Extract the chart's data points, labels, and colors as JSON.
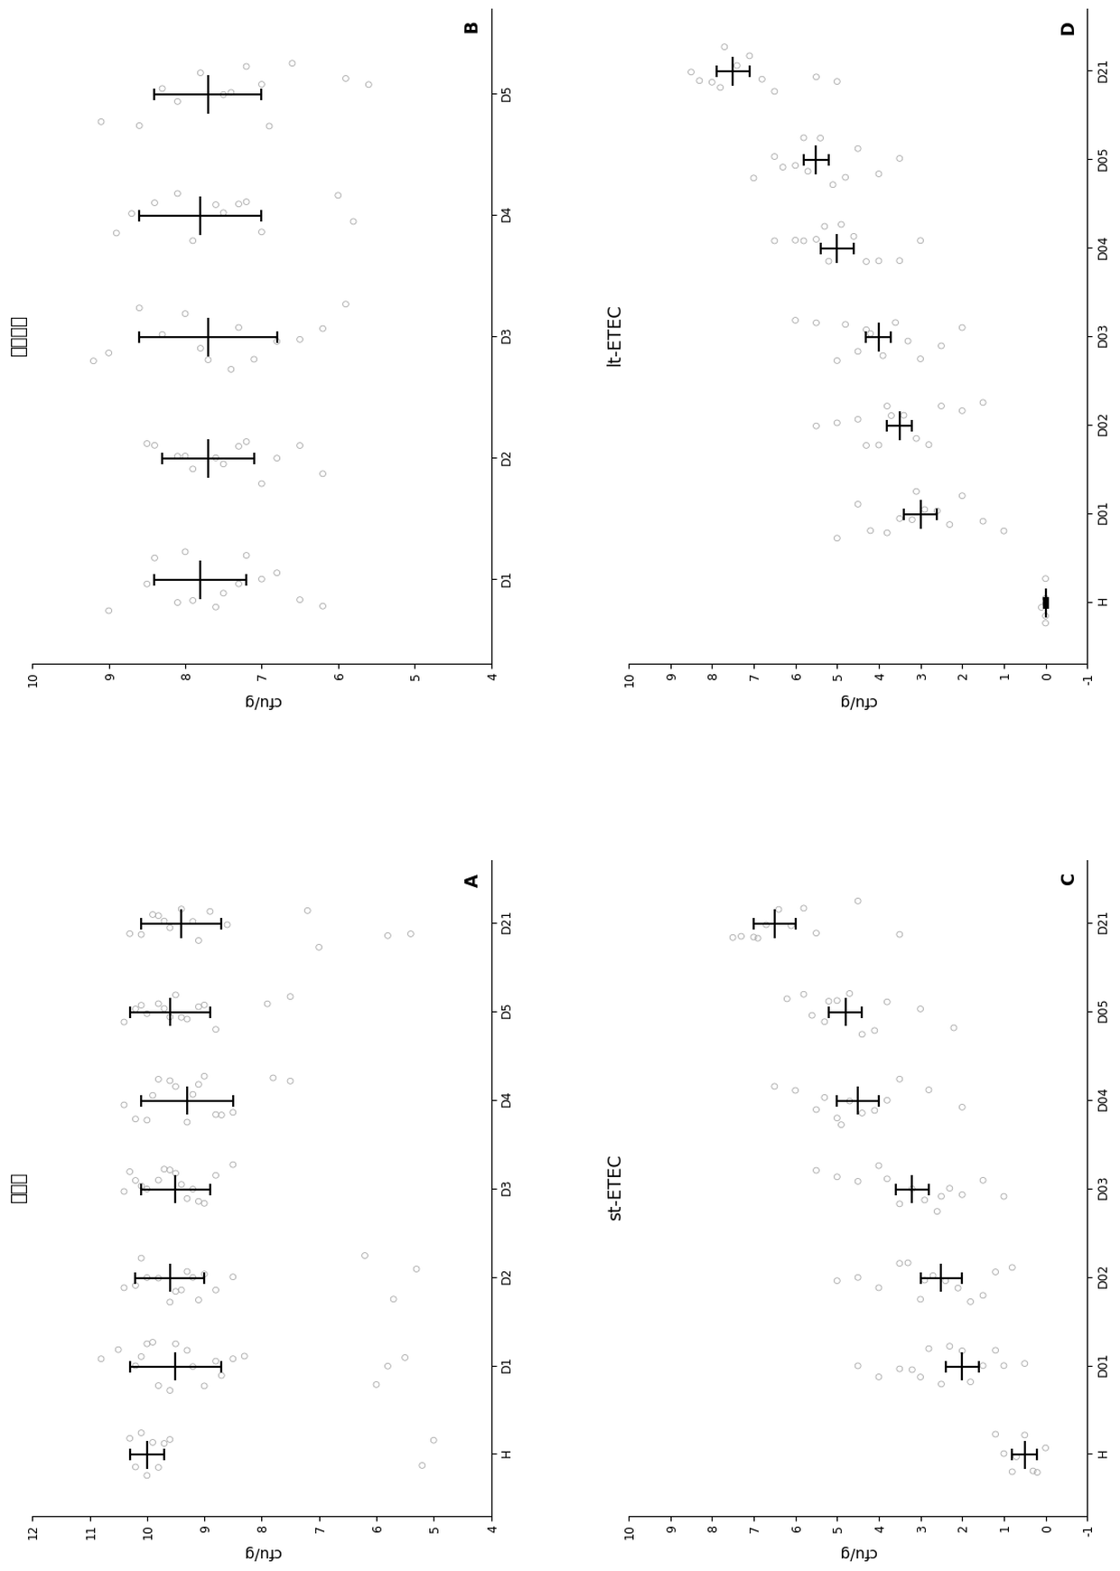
{
  "panels": {
    "A": {
      "title": "总细菌",
      "label": "A",
      "categories": [
        "H",
        "D1",
        "D2",
        "D3",
        "D4",
        "D5",
        "D21"
      ],
      "xlim": [
        4,
        12
      ],
      "xticks": [
        4,
        5,
        6,
        7,
        8,
        9,
        10,
        11,
        12
      ],
      "means": [
        10.0,
        9.5,
        9.6,
        9.5,
        9.3,
        9.6,
        9.4
      ],
      "errors": [
        0.3,
        0.8,
        0.6,
        0.6,
        0.8,
        0.7,
        0.7
      ],
      "scatter_data": {
        "H": [
          9.8,
          10.0,
          10.2,
          10.1,
          9.9,
          9.7,
          10.3,
          9.6,
          5.2,
          5.0
        ],
        "D1": [
          8.5,
          9.0,
          9.2,
          9.5,
          9.8,
          10.0,
          10.2,
          10.5,
          10.8,
          9.3,
          9.6,
          8.8,
          9.9,
          10.1,
          8.3,
          8.7,
          5.5,
          5.8,
          6.0
        ],
        "D2": [
          8.8,
          9.1,
          9.3,
          9.5,
          9.8,
          10.0,
          10.2,
          10.4,
          9.2,
          9.6,
          10.1,
          9.4,
          9.0,
          8.5,
          5.7,
          5.3,
          6.2
        ],
        "D3": [
          8.8,
          9.1,
          9.3,
          9.5,
          9.8,
          10.0,
          10.2,
          10.4,
          9.2,
          9.6,
          10.1,
          9.4,
          9.0,
          8.5,
          9.7,
          10.3
        ],
        "D4": [
          8.5,
          8.8,
          9.0,
          9.3,
          9.5,
          9.8,
          10.0,
          10.2,
          10.4,
          9.1,
          8.7,
          9.9,
          9.6,
          9.2,
          7.8,
          7.5
        ],
        "D5": [
          8.8,
          9.1,
          9.3,
          9.5,
          9.7,
          10.0,
          10.2,
          10.4,
          9.8,
          9.4,
          9.0,
          10.1,
          9.6,
          7.9,
          7.5
        ],
        "D21": [
          8.6,
          8.9,
          9.1,
          9.4,
          9.6,
          9.9,
          10.1,
          10.3,
          9.7,
          9.2,
          9.8,
          7.0,
          7.2,
          5.4,
          5.8
        ]
      }
    },
    "B": {
      "title": "大肠杆菌",
      "label": "B",
      "categories": [
        "D1",
        "D2",
        "D3",
        "D4",
        "D5"
      ],
      "xlim": [
        4,
        10
      ],
      "xticks": [
        4,
        5,
        6,
        7,
        8,
        9,
        10
      ],
      "means": [
        7.8,
        7.7,
        7.7,
        7.8,
        7.7
      ],
      "errors": [
        0.6,
        0.6,
        0.9,
        0.8,
        0.7
      ],
      "scatter_data": {
        "D1": [
          7.0,
          7.3,
          7.6,
          7.9,
          8.1,
          8.4,
          8.0,
          7.5,
          7.2,
          6.8,
          8.5,
          9.0,
          6.5,
          6.2
        ],
        "D2": [
          7.0,
          7.3,
          7.6,
          7.9,
          8.1,
          8.4,
          8.0,
          7.5,
          7.2,
          6.8,
          8.5,
          6.5,
          6.2
        ],
        "D3": [
          6.8,
          7.1,
          7.4,
          7.7,
          8.0,
          8.3,
          8.6,
          7.3,
          7.8,
          6.5,
          9.0,
          9.2,
          6.2,
          5.9
        ],
        "D4": [
          7.0,
          7.3,
          7.6,
          7.9,
          8.1,
          8.4,
          8.7,
          7.5,
          7.2,
          8.9,
          6.0,
          5.8
        ],
        "D5": [
          6.9,
          7.2,
          7.5,
          7.8,
          8.1,
          8.3,
          8.6,
          7.4,
          7.0,
          6.6,
          9.1,
          5.9,
          5.6
        ]
      }
    },
    "C": {
      "title": "st-ETEC",
      "label": "C",
      "categories": [
        "H",
        "D01",
        "D02",
        "D03",
        "D04",
        "D05",
        "D21"
      ],
      "xlim": [
        -1,
        10
      ],
      "xticks": [
        -1,
        0,
        1,
        2,
        3,
        4,
        5,
        6,
        7,
        8,
        9,
        10
      ],
      "means": [
        0.5,
        2.0,
        2.5,
        3.2,
        4.5,
        4.8,
        6.5
      ],
      "errors": [
        0.3,
        0.4,
        0.5,
        0.4,
        0.5,
        0.4,
        0.5
      ],
      "scatter_data": {
        "H": [
          0.0,
          0.2,
          0.5,
          0.8,
          1.0,
          1.2,
          0.3,
          0.7
        ],
        "D01": [
          1.2,
          1.5,
          1.8,
          2.0,
          2.3,
          2.5,
          2.8,
          1.0,
          3.0,
          3.2,
          0.5,
          3.5,
          4.0,
          4.5
        ],
        "D02": [
          1.5,
          1.8,
          2.1,
          2.4,
          2.7,
          3.0,
          3.3,
          2.9,
          1.2,
          3.5,
          0.8,
          4.0,
          4.5,
          5.0
        ],
        "D03": [
          2.0,
          2.3,
          2.6,
          2.9,
          3.2,
          3.5,
          3.8,
          2.5,
          1.5,
          4.0,
          1.0,
          4.5,
          5.0,
          5.5
        ],
        "D04": [
          3.5,
          3.8,
          4.1,
          4.4,
          4.7,
          5.0,
          5.3,
          4.9,
          2.8,
          5.5,
          2.0,
          6.0,
          6.5
        ],
        "D05": [
          3.8,
          4.1,
          4.4,
          4.7,
          5.0,
          5.3,
          5.6,
          5.2,
          3.0,
          5.8,
          2.2,
          6.2
        ],
        "D21": [
          5.5,
          5.8,
          6.1,
          6.4,
          6.7,
          7.0,
          7.3,
          6.9,
          4.5,
          7.5,
          3.5
        ]
      }
    },
    "D": {
      "title": "lt-ETEC",
      "label": "D",
      "categories": [
        "H",
        "D01",
        "D02",
        "D03",
        "D04",
        "D05",
        "D21"
      ],
      "xlim": [
        -1,
        10
      ],
      "xticks": [
        -1,
        0,
        1,
        2,
        3,
        4,
        5,
        6,
        7,
        8,
        9,
        10
      ],
      "means": [
        0.0,
        3.0,
        3.5,
        4.0,
        5.0,
        5.5,
        7.5
      ],
      "errors": [
        0.05,
        0.4,
        0.3,
        0.3,
        0.4,
        0.3,
        0.4
      ],
      "scatter_data": {
        "H": [
          0.0,
          0.0,
          0.0,
          0.0,
          0.1,
          0.0,
          0.0
        ],
        "D01": [
          2.0,
          2.3,
          2.6,
          2.9,
          3.2,
          3.5,
          3.8,
          3.1,
          1.5,
          4.2,
          1.0,
          4.5,
          5.0
        ],
        "D02": [
          2.5,
          2.8,
          3.1,
          3.4,
          3.7,
          4.0,
          4.3,
          3.8,
          2.0,
          4.5,
          1.5,
          5.0,
          5.5
        ],
        "D03": [
          3.0,
          3.3,
          3.6,
          3.9,
          4.2,
          4.5,
          4.8,
          4.3,
          2.5,
          5.0,
          2.0,
          5.5,
          6.0
        ],
        "D04": [
          4.0,
          4.3,
          4.6,
          4.9,
          5.2,
          5.5,
          5.8,
          5.3,
          3.5,
          6.0,
          3.0,
          6.5
        ],
        "D05": [
          4.5,
          4.8,
          5.1,
          5.4,
          5.7,
          6.0,
          6.3,
          5.8,
          4.0,
          6.5,
          3.5,
          7.0
        ],
        "D21": [
          6.5,
          6.8,
          7.1,
          7.4,
          7.7,
          8.0,
          8.3,
          7.8,
          5.5,
          8.5,
          5.0
        ]
      }
    }
  },
  "scatter_color": "#aaaaaa",
  "marker_size": 18,
  "error_color": "black",
  "error_linewidth": 1.5,
  "figure_bg": "white"
}
